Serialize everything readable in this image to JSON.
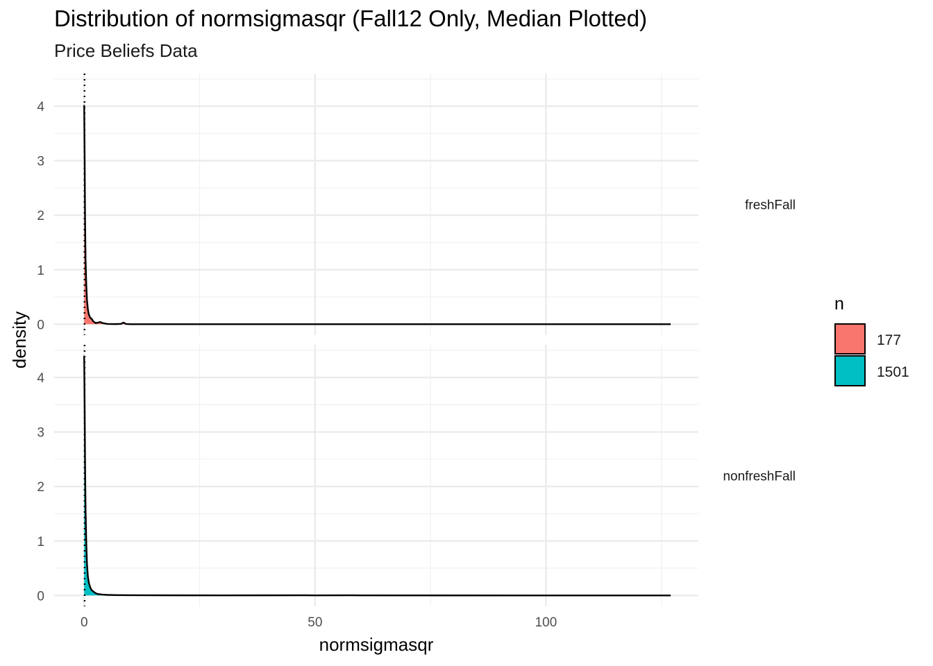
{
  "title": "Distribution of normsigmasqr (Fall12 Only, Median Plotted)",
  "subtitle": "Price Beliefs Data",
  "chart_data": {
    "type": "area",
    "title": "Distribution of normsigmasqr (Fall12 Only, Median Plotted)",
    "subtitle": "Price Beliefs Data",
    "xlabel": "normsigmasqr",
    "ylabel": "density",
    "xlim": [
      -6.5,
      133
    ],
    "ylim": [
      -0.2,
      4.6
    ],
    "x_ticks": [
      0,
      50,
      100
    ],
    "y_ticks": [
      0,
      1,
      2,
      3,
      4
    ],
    "grid": true,
    "legend": {
      "title": "n",
      "position": "right",
      "entries": [
        {
          "label": "177",
          "color": "#F8766D"
        },
        {
          "label": "1501",
          "color": "#00BFC4"
        }
      ]
    },
    "facets": [
      {
        "strip_label": "freshFall",
        "fill": "#F8766D",
        "median": 0.08,
        "points": [
          [
            0,
            4.02
          ],
          [
            0.1,
            3.1
          ],
          [
            0.2,
            1.9
          ],
          [
            0.3,
            1.2
          ],
          [
            0.45,
            0.75
          ],
          [
            0.6,
            0.45
          ],
          [
            0.8,
            0.28
          ],
          [
            1.0,
            0.18
          ],
          [
            1.3,
            0.12
          ],
          [
            1.6,
            0.1
          ],
          [
            2.0,
            0.05
          ],
          [
            2.5,
            0.02
          ],
          [
            3.0,
            0.03
          ],
          [
            3.5,
            0.04
          ],
          [
            4.0,
            0.02
          ],
          [
            5.0,
            0.005
          ],
          [
            6.0,
            0.003
          ],
          [
            7.0,
            0.002
          ],
          [
            8.0,
            0.006
          ],
          [
            8.5,
            0.03
          ],
          [
            9.0,
            0.005
          ],
          [
            10.0,
            0.0
          ],
          [
            20.0,
            0.0
          ],
          [
            50.0,
            0.0
          ],
          [
            100.0,
            0.0
          ],
          [
            127.0,
            0.0
          ]
        ]
      },
      {
        "strip_label": "nonfreshFall",
        "fill": "#00BFC4",
        "median": 0.1,
        "points": [
          [
            0,
            4.4
          ],
          [
            0.1,
            3.5
          ],
          [
            0.2,
            2.4
          ],
          [
            0.3,
            1.6
          ],
          [
            0.45,
            1.0
          ],
          [
            0.6,
            0.6
          ],
          [
            0.8,
            0.35
          ],
          [
            1.0,
            0.24
          ],
          [
            1.3,
            0.15
          ],
          [
            1.6,
            0.1
          ],
          [
            2.0,
            0.07
          ],
          [
            2.5,
            0.04
          ],
          [
            3.0,
            0.025
          ],
          [
            4.0,
            0.015
          ],
          [
            5.0,
            0.01
          ],
          [
            7.0,
            0.006
          ],
          [
            10.0,
            0.004
          ],
          [
            15.0,
            0.003
          ],
          [
            20.0,
            0.002
          ],
          [
            30.0,
            0.001
          ],
          [
            48.0,
            0.003
          ],
          [
            50.0,
            0.001
          ],
          [
            58.0,
            0.003
          ],
          [
            60.0,
            0.001
          ],
          [
            100.0,
            0.0
          ],
          [
            127.0,
            0.0
          ]
        ]
      }
    ]
  }
}
